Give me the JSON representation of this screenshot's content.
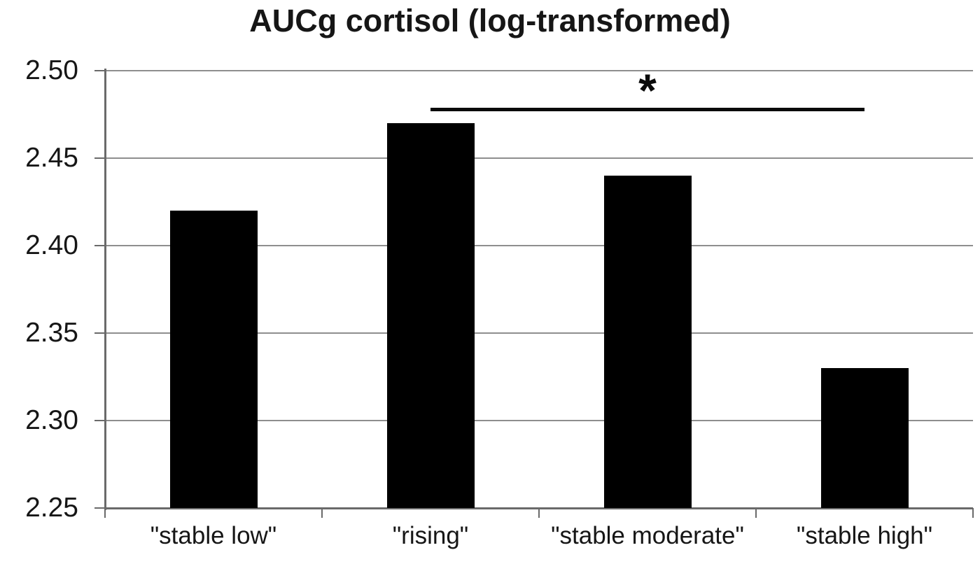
{
  "chart_data": {
    "type": "bar",
    "title": "AUCg cortisol (log-transformed)",
    "categories": [
      "\"stable low\"",
      "\"rising\"",
      "\"stable moderate\"",
      "\"stable high\""
    ],
    "values": [
      2.42,
      2.47,
      2.44,
      2.33
    ],
    "xlabel": "",
    "ylabel": "",
    "ylim": [
      2.25,
      2.5
    ],
    "ytick_labels": [
      "2.25",
      "2.30",
      "2.35",
      "2.40",
      "2.45",
      "2.50"
    ],
    "grid": true,
    "legend": false,
    "significance": {
      "from": "\"rising\"",
      "to": "\"stable high\"",
      "label": "*",
      "y_value": 2.479
    }
  },
  "colors": {
    "background": "#ffffff",
    "bar": "#000000",
    "gridline": "#8e8e8e",
    "axis": "#6a6a6a",
    "text": "#161616",
    "significance": "#0a0a0a"
  }
}
